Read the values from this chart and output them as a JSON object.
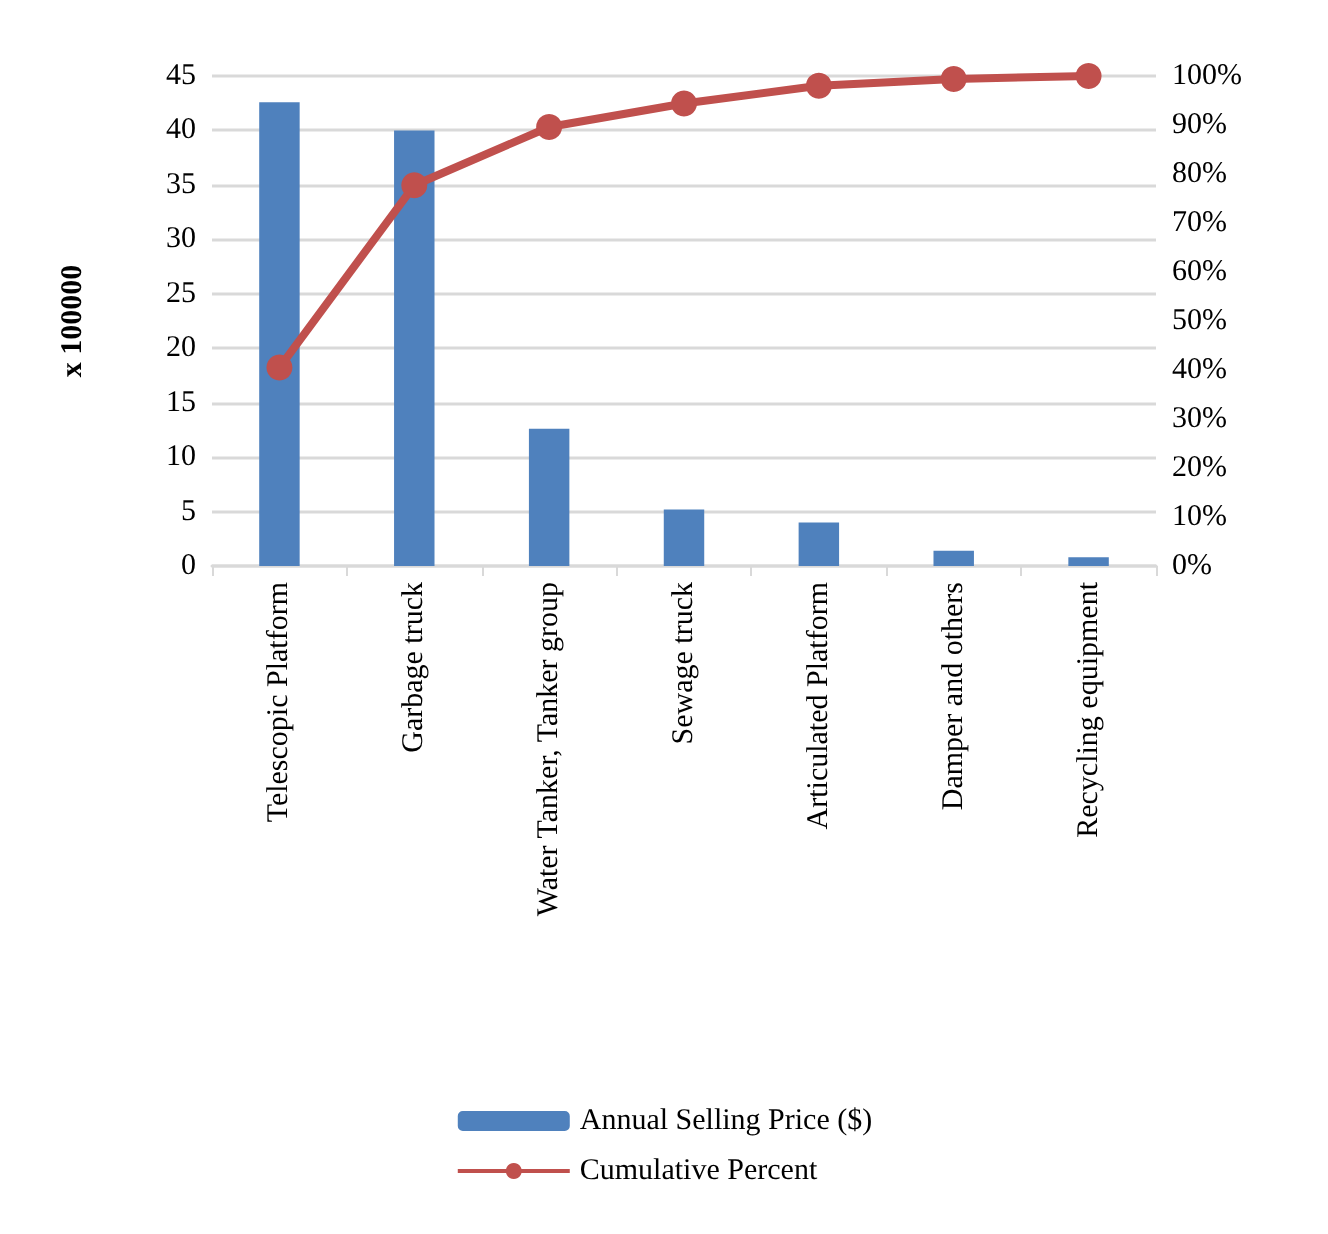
{
  "chart_data": {
    "type": "bar",
    "ylabel": "x 100000",
    "categories": [
      "Telescopic Platform",
      "Garbage truck",
      "Water Tanker, Tanker group",
      "Sewage truck",
      "Articulated Platform",
      "Damper and others",
      "Recycling equipment"
    ],
    "series": [
      {
        "name": "Annual Selling Price ($)",
        "color": "#4f81bd",
        "values": [
          42.6,
          40.0,
          12.6,
          5.2,
          4.0,
          1.4,
          0.8
        ]
      },
      {
        "name": "Cumulative Percent",
        "type": "line",
        "axis": "y2",
        "color": "#c0504d",
        "marker": "circle",
        "values": [
          40.5,
          77.7,
          89.6,
          94.4,
          98.0,
          99.4,
          100
        ]
      }
    ],
    "ylim": [
      0,
      45
    ],
    "yticks": [
      0,
      5,
      10,
      15,
      20,
      25,
      30,
      35,
      40,
      45
    ],
    "y2lim": [
      0,
      100
    ],
    "y2ticks": [
      {
        "value": 0,
        "label": "0%"
      },
      {
        "value": 10,
        "label": "10%"
      },
      {
        "value": 20,
        "label": "20%"
      },
      {
        "value": 30,
        "label": "30%"
      },
      {
        "value": 40,
        "label": "40%"
      },
      {
        "value": 50,
        "label": "50%"
      },
      {
        "value": 60,
        "label": "60%"
      },
      {
        "value": 70,
        "label": "70%"
      },
      {
        "value": 80,
        "label": "80%"
      },
      {
        "value": 90,
        "label": "90%"
      },
      {
        "value": 100,
        "label": "100%"
      }
    ],
    "grid": "y",
    "legend": "bottom"
  }
}
